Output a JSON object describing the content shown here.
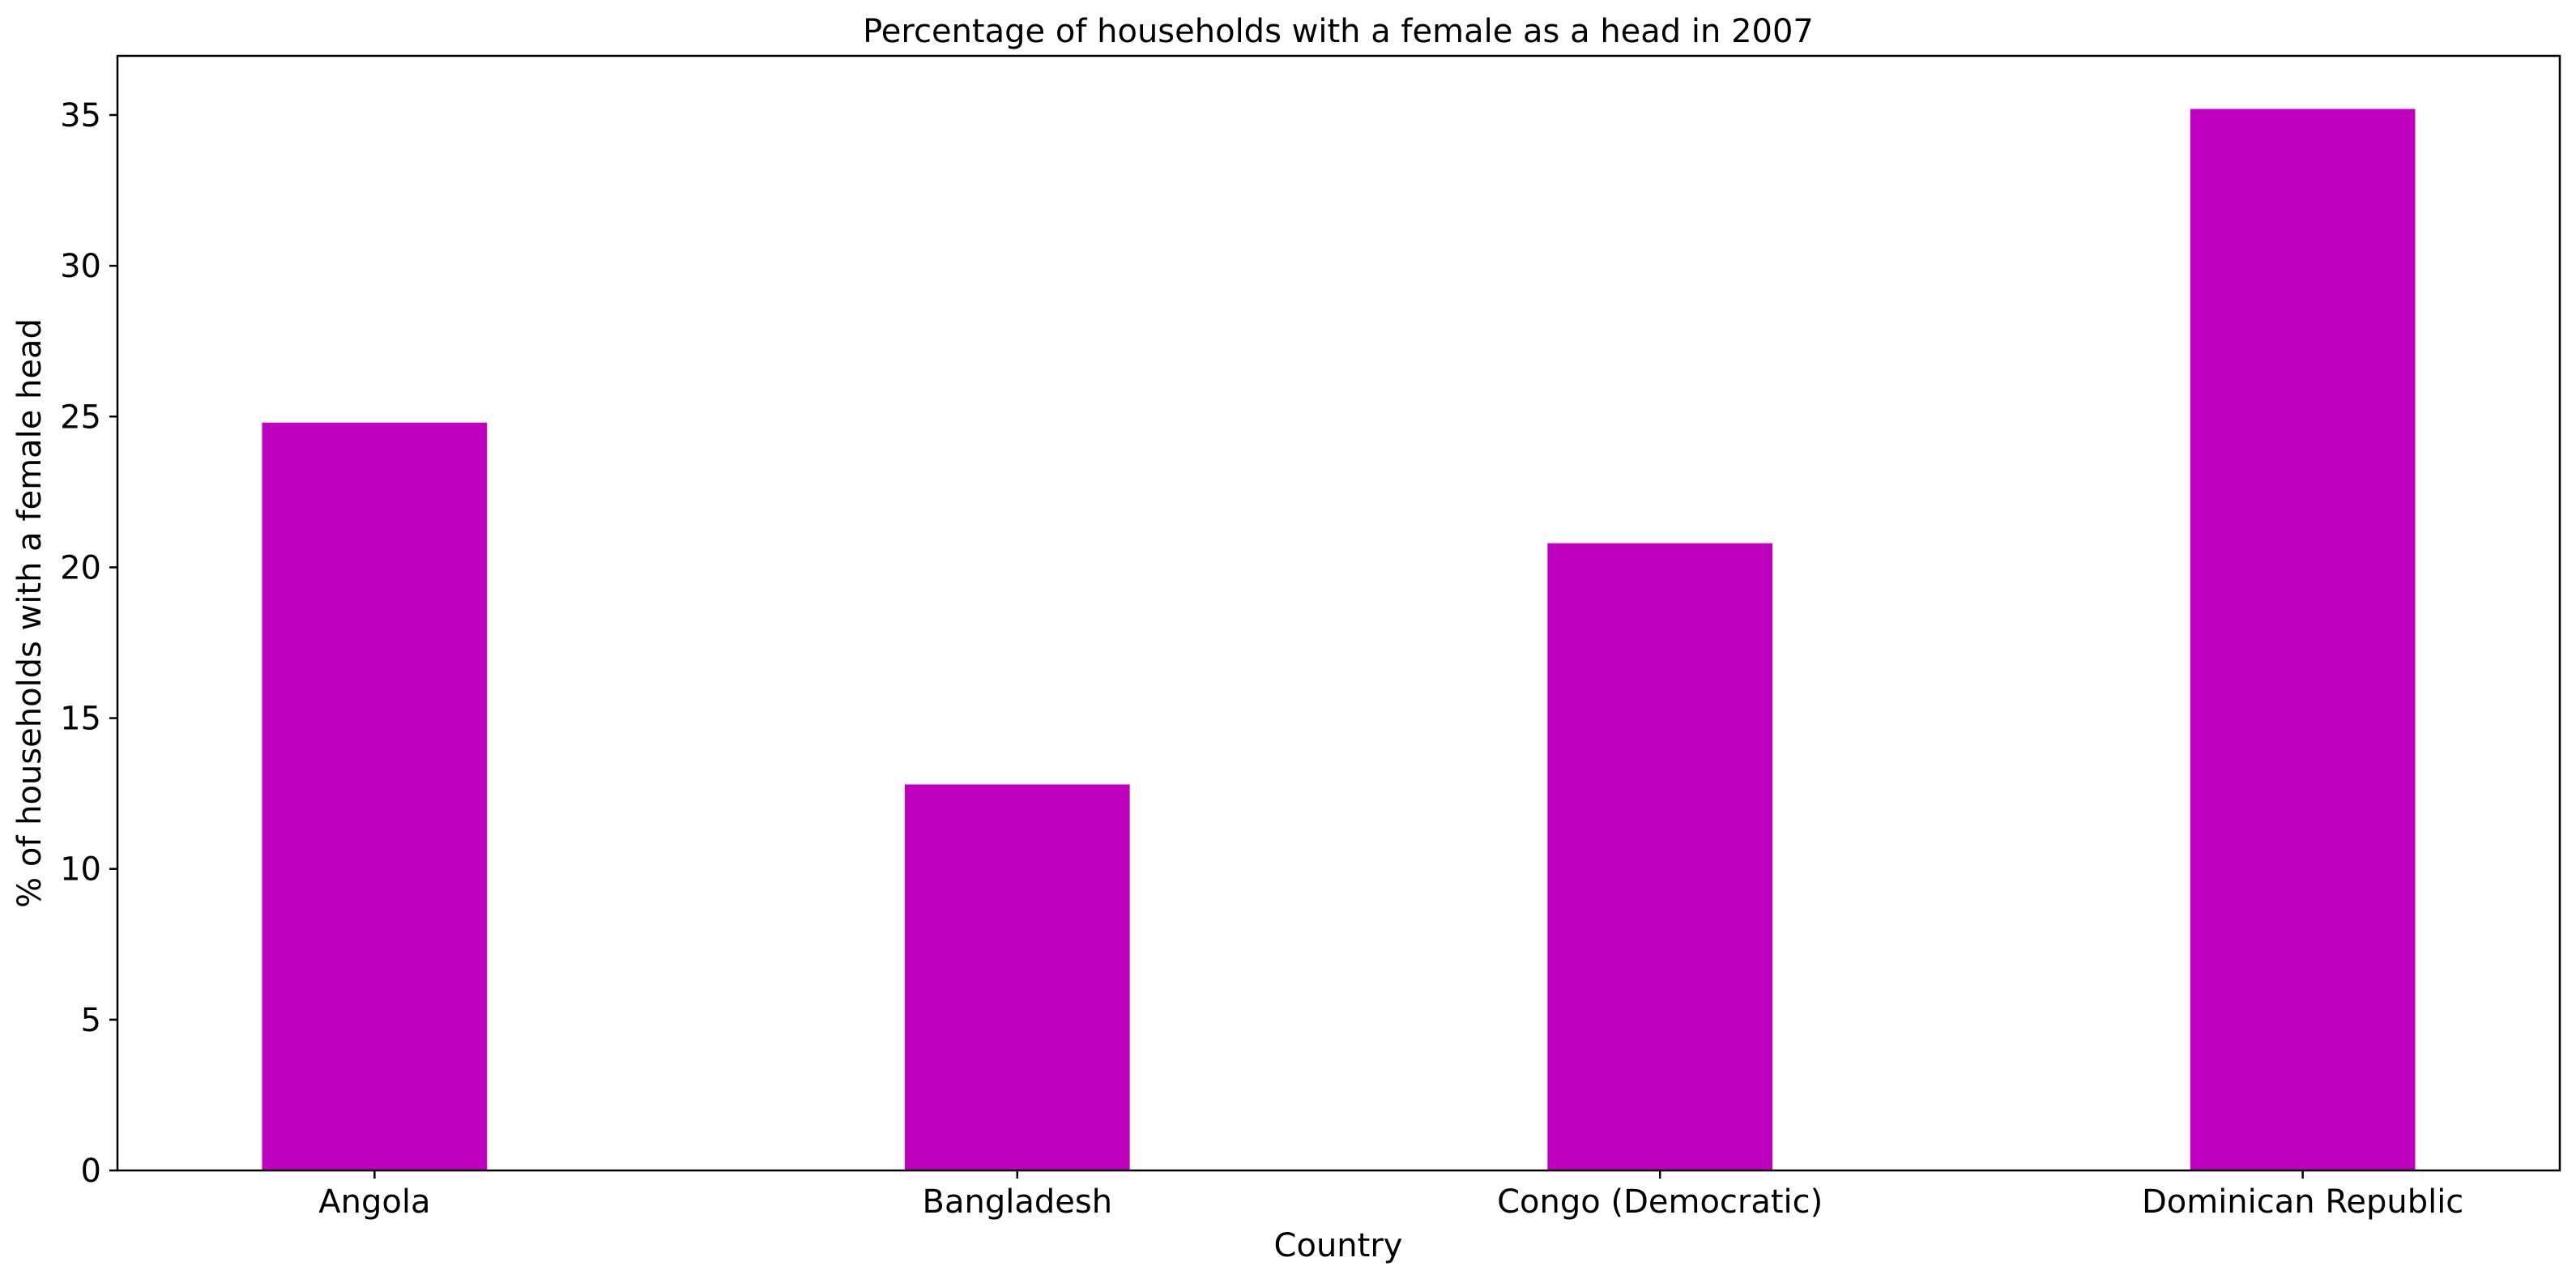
{
  "chart_data": {
    "type": "bar",
    "title": "Percentage of households with a female as a head in 2007",
    "xlabel": "Country",
    "ylabel": "% of households with a female head",
    "categories": [
      "Angola",
      "Bangladesh",
      "Congo (Democratic)",
      "Dominican Republic"
    ],
    "values": [
      24.8,
      12.8,
      20.8,
      35.2
    ],
    "ylim": [
      0,
      36.96
    ],
    "yticks": [
      0,
      5,
      10,
      15,
      20,
      25,
      30,
      35
    ],
    "bar_color": "#bf00bf",
    "grid": false,
    "legend": "none"
  }
}
